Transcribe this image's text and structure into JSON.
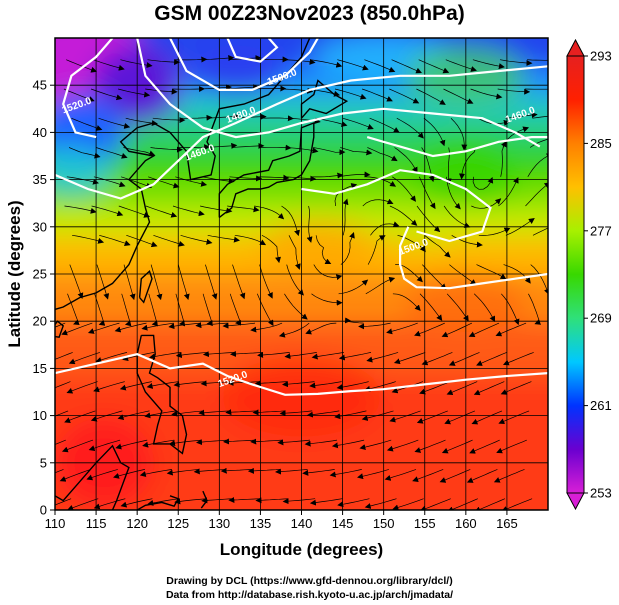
{
  "title": "GSM 00Z23Nov2023 (850.0hPa)",
  "xlabel": "Longitude (degrees)",
  "ylabel": "Latitude  (degrees)",
  "credits": [
    "Drawing by DCL (https://www.gfd-dennou.org/library/dcl/)",
    "Data from http://database.rish.kyoto-u.ac.jp/arch/jmadata/"
  ],
  "chart_data": {
    "type": "heatmap",
    "title": "GSM 00Z23Nov2023 (850.0hPa)",
    "xlabel": "Longitude (degrees)",
    "ylabel": "Latitude  (degrees)",
    "xlim": [
      110,
      170
    ],
    "ylim": [
      0,
      50
    ],
    "x_ticks": [
      110,
      115,
      120,
      125,
      130,
      135,
      140,
      145,
      150,
      155,
      160,
      165
    ],
    "y_ticks": [
      0,
      5,
      10,
      15,
      20,
      25,
      30,
      35,
      40,
      45
    ],
    "grid": true,
    "colorbar": {
      "min": 253,
      "max": 293,
      "ticks": [
        253,
        261,
        269,
        277,
        285,
        293
      ],
      "colors": [
        "#d81fd6",
        "#6a00d0",
        "#0033ff",
        "#00c8ff",
        "#2fe07a",
        "#38d800",
        "#a8f000",
        "#ffc000",
        "#ff8000",
        "#ff2000",
        "#e62020"
      ]
    },
    "contour_labels": [
      {
        "text": "1520.0",
        "lon": 111,
        "lat": 42
      },
      {
        "text": "1500.0",
        "lon": 136,
        "lat": 45
      },
      {
        "text": "1480.0",
        "lon": 131,
        "lat": 41
      },
      {
        "text": "1460.0",
        "lon": 126,
        "lat": 37
      },
      {
        "text": "1460.0",
        "lon": 165,
        "lat": 41
      },
      {
        "text": "1500.0",
        "lon": 152,
        "lat": 27
      },
      {
        "text": "1520.0",
        "lon": 130,
        "lat": 13
      }
    ]
  }
}
